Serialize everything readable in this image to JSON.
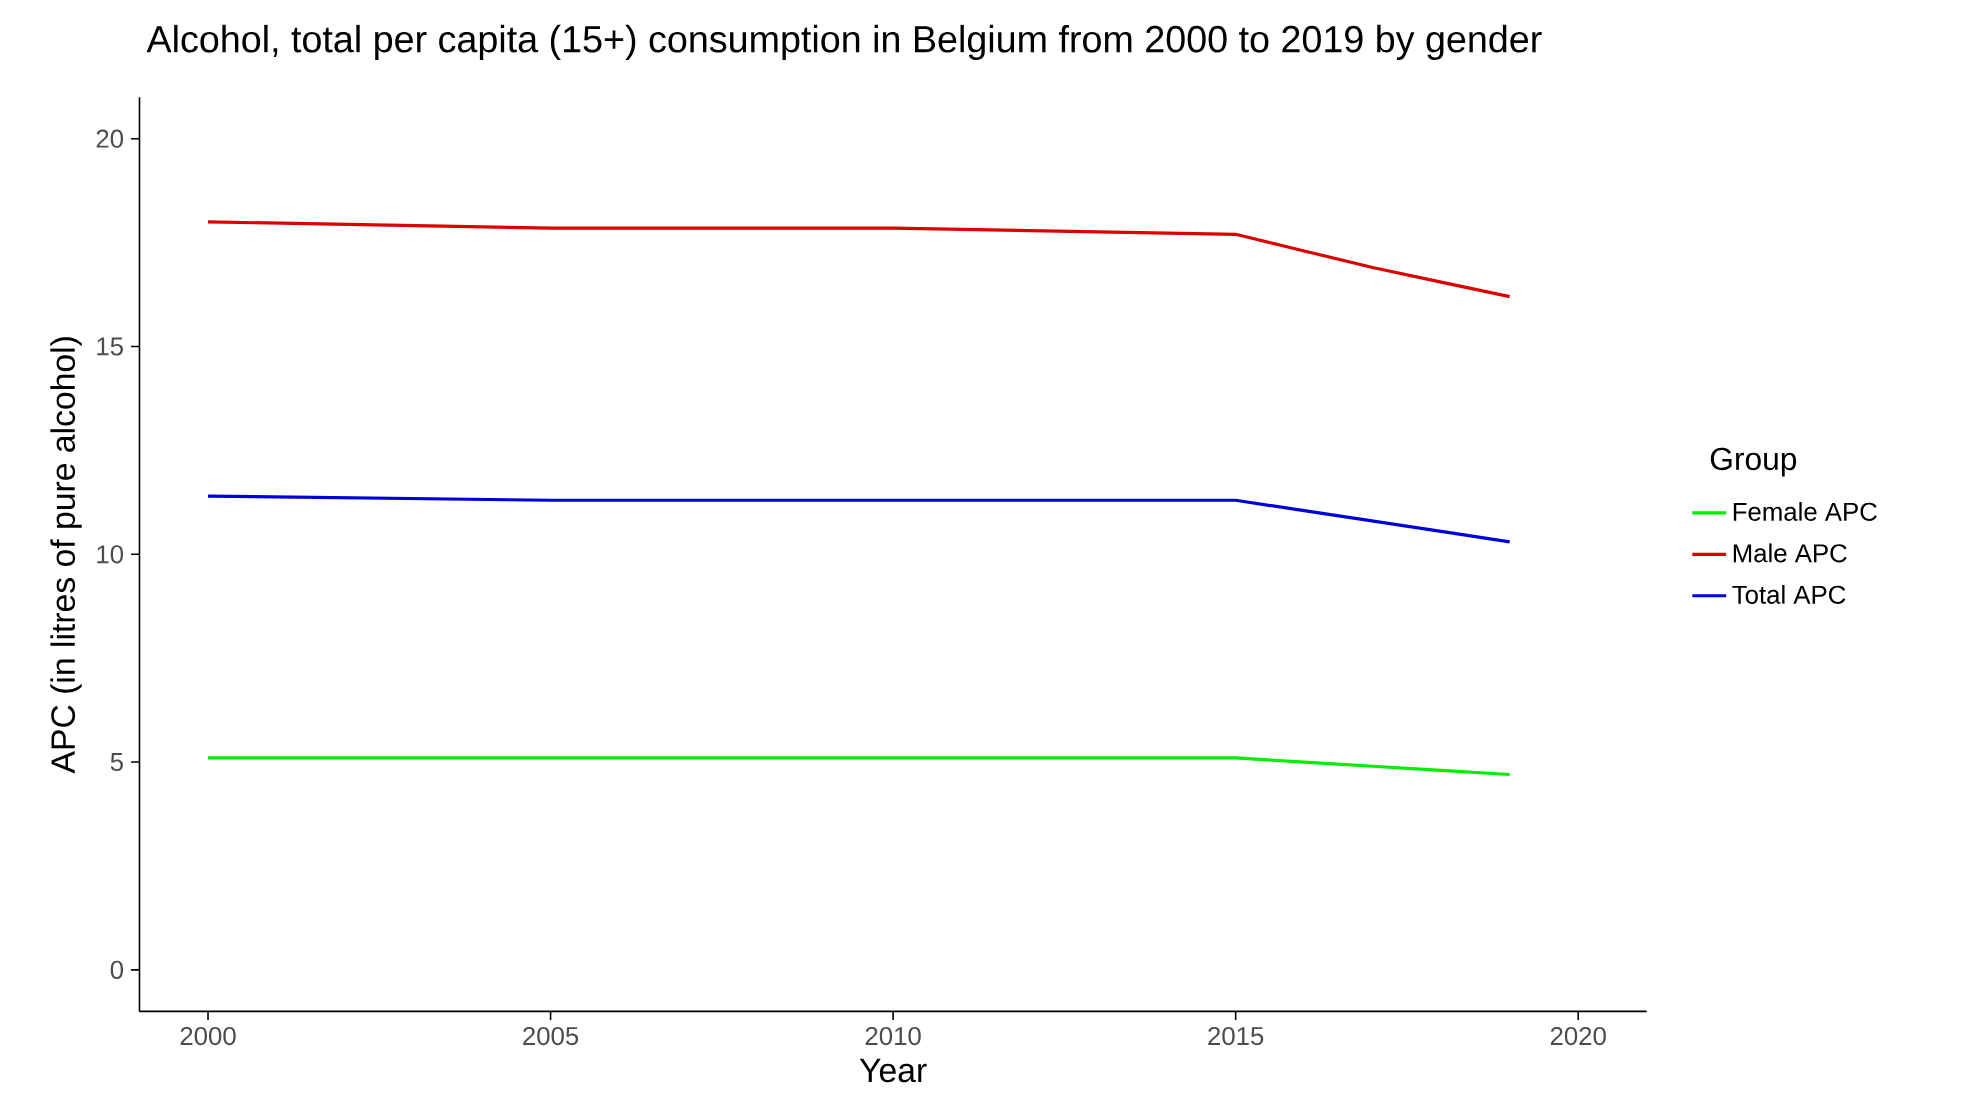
{
  "chart_data": {
    "type": "line",
    "title": "Alcohol, total per capita (15+) consumption in Belgium from 2000 to 2019 by gender",
    "xlabel": "Year",
    "ylabel": "APC (in litres of pure alcohol)",
    "legend_title": "Group",
    "legend": "right",
    "x": [
      2000,
      2005,
      2010,
      2015,
      2016,
      2017,
      2018,
      2019
    ],
    "series": [
      {
        "name": "Female APC",
        "color": "#00ee00",
        "values": [
          5.1,
          5.1,
          5.1,
          5.1,
          5.0,
          4.9,
          4.8,
          4.7
        ]
      },
      {
        "name": "Male APC",
        "color": "#dd0000",
        "values": [
          18.0,
          17.85,
          17.85,
          17.7,
          17.3,
          16.9,
          16.55,
          16.2
        ]
      },
      {
        "name": "Total APC",
        "color": "#0000dd",
        "values": [
          11.4,
          11.3,
          11.3,
          11.3,
          11.05,
          10.8,
          10.55,
          10.3
        ]
      }
    ],
    "xlim": [
      1999,
      2021
    ],
    "ylim": [
      -1,
      21
    ],
    "xticks": [
      2000,
      2005,
      2010,
      2015,
      2020
    ],
    "yticks": [
      0,
      5,
      10,
      15,
      20
    ]
  }
}
